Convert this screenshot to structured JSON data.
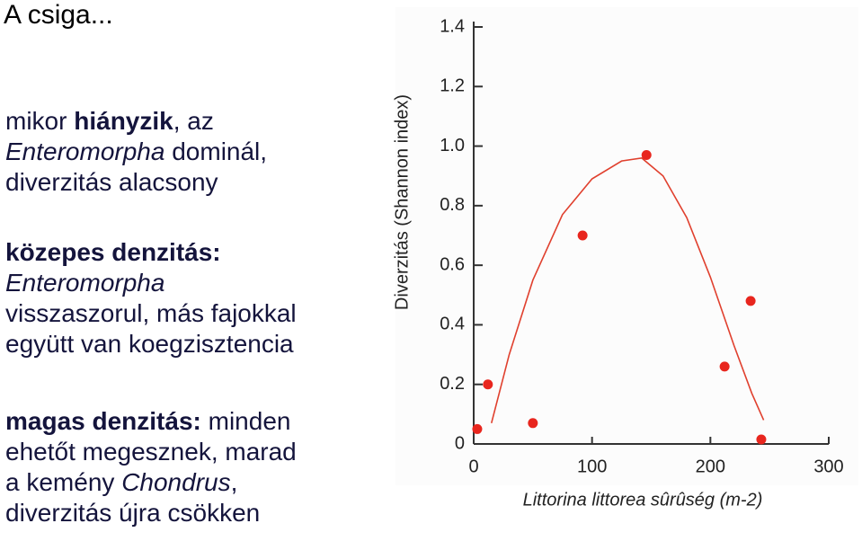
{
  "title": "A csiga...",
  "paragraphs": [
    [
      "mikor",
      "hiányzik",
      ", az",
      "Enteromorpha",
      "dominál,",
      "diverzitás alacsony"
    ],
    [
      "közepes denzitás:",
      "Enteromorpha",
      "visszaszorul, más fajokkal",
      "együtt van koegzisztencia"
    ],
    [
      "magas denzitás:",
      "minden",
      "ehetőt megesznek, marad",
      "a kemény",
      "Chondrus",
      ",",
      "diverzitás újra csökken"
    ]
  ],
  "chart_data": {
    "type": "scatter",
    "xlabel": "Littorina littorea sûrûség (m-2)",
    "ylabel": "Diverzitás (Shannon index)",
    "xlim": [
      0,
      300
    ],
    "xticks": [
      0,
      100,
      200,
      300
    ],
    "ylim": [
      0,
      1.4
    ],
    "yticks": [
      0,
      0.2,
      0.4,
      0.6,
      0.8,
      {
        "value": 1.0,
        "label": "1.0"
      },
      1.2,
      1.4
    ],
    "series": [
      {
        "color": "#e8261e",
        "x": [
          3,
          12,
          50,
          92,
          146,
          212,
          234,
          243
        ],
        "values": [
          0.05,
          0.2,
          0.07,
          0.7,
          0.97,
          0.26,
          0.48,
          0.015
        ]
      }
    ],
    "curve": {
      "color": "#e0402e",
      "x": [
        15,
        30,
        50,
        75,
        100,
        125,
        142,
        160,
        180,
        200,
        220,
        235,
        245
      ],
      "values": [
        0.07,
        0.3,
        0.55,
        0.77,
        0.89,
        0.95,
        0.96,
        0.9,
        0.76,
        0.56,
        0.33,
        0.17,
        0.08
      ]
    }
  }
}
